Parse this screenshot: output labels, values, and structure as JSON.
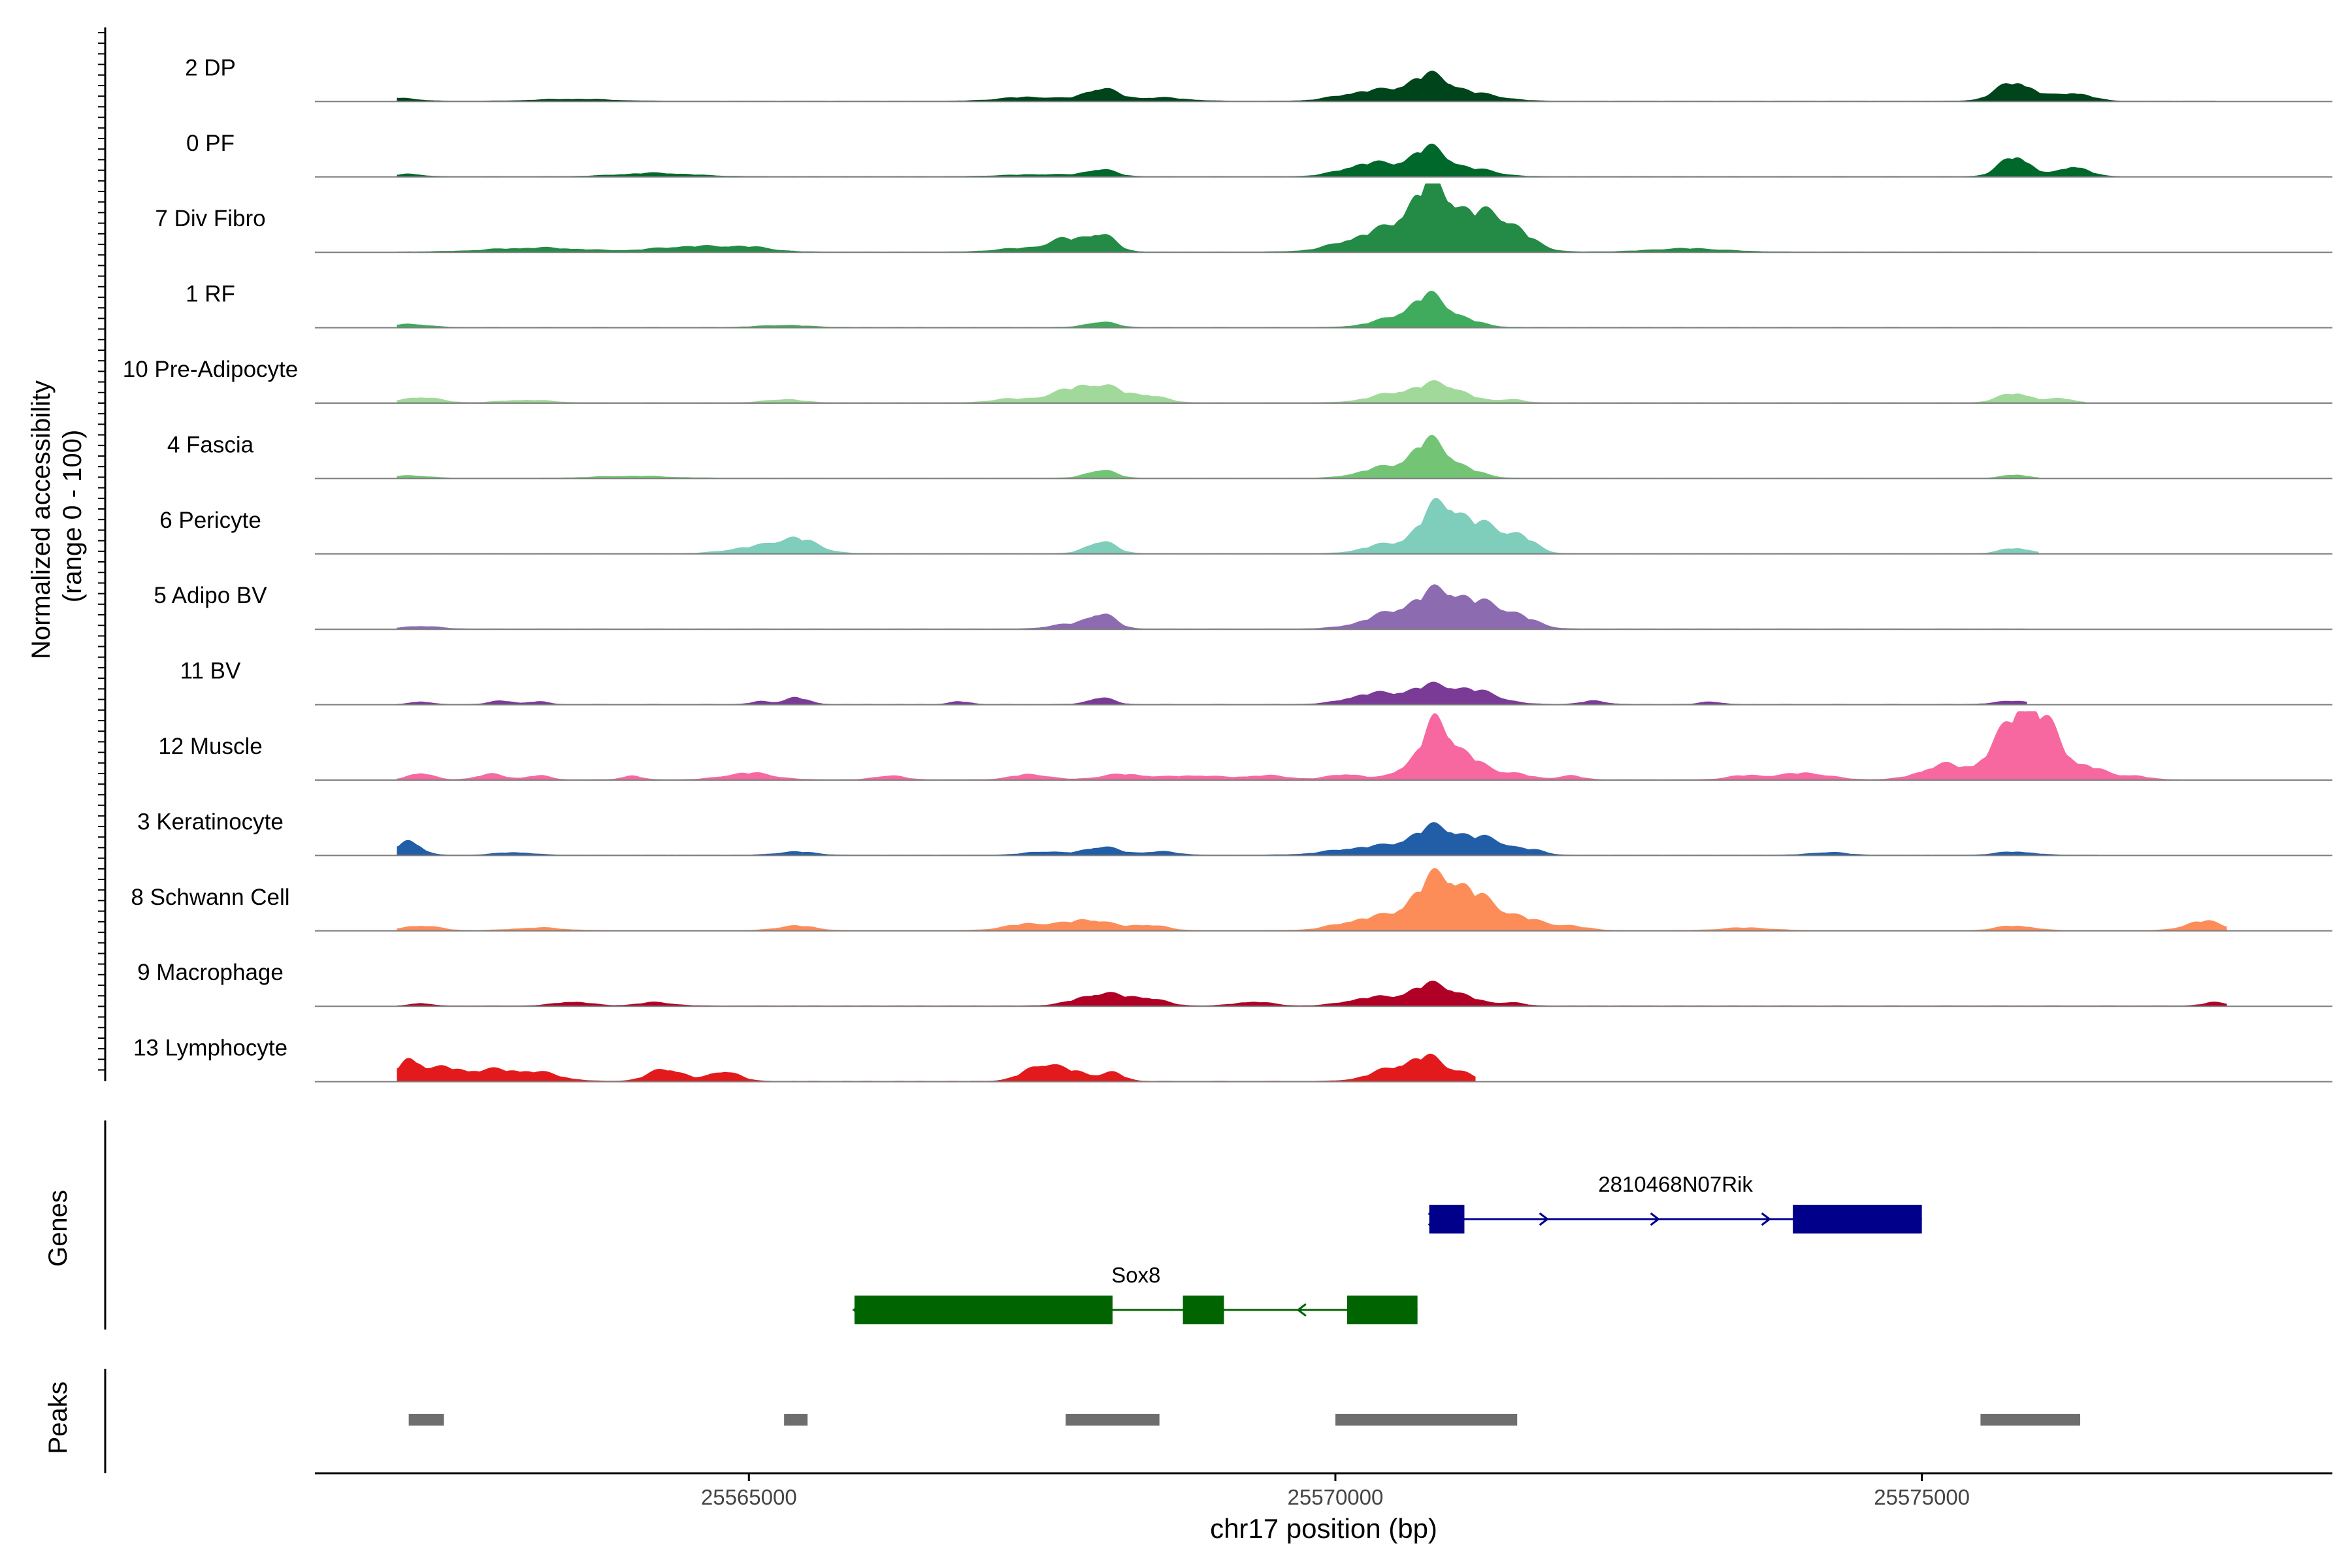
{
  "chart_data": {
    "type": "area",
    "title": "",
    "ylabel_line1": "Normalized accessibility",
    "ylabel_line2": "(range 0 - 100)",
    "xlabel": "chr17 position (bp)",
    "xlim": [
      25561300,
      25578500
    ],
    "ylim": [
      0,
      100
    ],
    "x_ticks": [
      25565000,
      25570000,
      25575000
    ],
    "x_tick_labels": [
      "25565000",
      "25570000",
      "25575000"
    ],
    "tracks": [
      {
        "name": "2 DP",
        "color": "#00441b",
        "peaks": [
          [
            25562000,
            0.05,
            150
          ],
          [
            25563500,
            0.03,
            300
          ],
          [
            25567400,
            0.06,
            250
          ],
          [
            25568000,
            0.18,
            140
          ],
          [
            25568500,
            0.05,
            220
          ],
          [
            25570300,
            0.15,
            250
          ],
          [
            25570800,
            0.35,
            180
          ],
          [
            25571200,
            0.1,
            220
          ],
          [
            25575800,
            0.28,
            160
          ],
          [
            25576300,
            0.12,
            140
          ]
        ],
        "extent": [
          25562000,
          25577500
        ]
      },
      {
        "name": "0 PF",
        "color": "#00682b",
        "peaks": [
          [
            25562100,
            0.04,
            100
          ],
          [
            25564200,
            0.05,
            300
          ],
          [
            25567500,
            0.03,
            300
          ],
          [
            25568000,
            0.1,
            120
          ],
          [
            25570300,
            0.2,
            220
          ],
          [
            25570800,
            0.4,
            160
          ],
          [
            25571200,
            0.1,
            180
          ],
          [
            25575800,
            0.3,
            130
          ],
          [
            25576300,
            0.15,
            120
          ]
        ],
        "extent": [
          25562000,
          25576700
        ]
      },
      {
        "name": "7 Div Fibro",
        "color": "#238b45",
        "peaks": [
          [
            25563200,
            0.06,
            400
          ],
          [
            25564500,
            0.08,
            300
          ],
          [
            25565000,
            0.06,
            200
          ],
          [
            25567300,
            0.05,
            200
          ],
          [
            25567700,
            0.18,
            150
          ],
          [
            25568000,
            0.25,
            120
          ],
          [
            25570400,
            0.3,
            300
          ],
          [
            25570800,
            0.75,
            170
          ],
          [
            25571200,
            0.5,
            250
          ],
          [
            25571500,
            0.2,
            180
          ],
          [
            25573000,
            0.05,
            300
          ]
        ],
        "extent": [
          25562000,
          25576000
        ]
      },
      {
        "name": "1 RF",
        "color": "#41ab5d",
        "peaks": [
          [
            25562100,
            0.05,
            150
          ],
          [
            25565300,
            0.03,
            200
          ],
          [
            25568000,
            0.08,
            120
          ],
          [
            25570500,
            0.12,
            200
          ],
          [
            25570800,
            0.42,
            150
          ],
          [
            25571100,
            0.1,
            150
          ]
        ],
        "extent": [
          25562000,
          25575900
        ]
      },
      {
        "name": "10 Pre-Adipocyte",
        "color": "#a1d99b",
        "peaks": [
          [
            25562200,
            0.08,
            160
          ],
          [
            25563100,
            0.04,
            200
          ],
          [
            25565300,
            0.05,
            150
          ],
          [
            25567200,
            0.05,
            150
          ],
          [
            25567700,
            0.14,
            200
          ],
          [
            25568000,
            0.22,
            180
          ],
          [
            25568400,
            0.1,
            150
          ],
          [
            25570500,
            0.12,
            220
          ],
          [
            25570900,
            0.26,
            200
          ],
          [
            25571500,
            0.05,
            100
          ],
          [
            25575800,
            0.14,
            140
          ],
          [
            25576200,
            0.06,
            100
          ]
        ],
        "extent": [
          25562000,
          25576400
        ]
      },
      {
        "name": "4 Fascia",
        "color": "#74c476",
        "peaks": [
          [
            25562100,
            0.04,
            150
          ],
          [
            25564000,
            0.03,
            300
          ],
          [
            25568000,
            0.12,
            120
          ],
          [
            25570400,
            0.15,
            200
          ],
          [
            25570800,
            0.52,
            150
          ],
          [
            25571100,
            0.12,
            150
          ],
          [
            25575800,
            0.05,
            100
          ]
        ],
        "extent": [
          25562000,
          25576000
        ]
      },
      {
        "name": "6 Pericyte",
        "color": "#7fcdbb",
        "peaks": [
          [
            25565000,
            0.08,
            200
          ],
          [
            25565400,
            0.22,
            180
          ],
          [
            25568000,
            0.18,
            120
          ],
          [
            25570400,
            0.12,
            180
          ],
          [
            25570900,
            0.72,
            180
          ],
          [
            25571300,
            0.35,
            180
          ],
          [
            25571600,
            0.18,
            120
          ],
          [
            25575800,
            0.08,
            120
          ]
        ],
        "extent": [
          25562000,
          25576000
        ]
      },
      {
        "name": "5 Adipo BV",
        "color": "#8c6bb1",
        "peaks": [
          [
            25562200,
            0.04,
            150
          ],
          [
            25567700,
            0.06,
            150
          ],
          [
            25568000,
            0.22,
            120
          ],
          [
            25570500,
            0.22,
            250
          ],
          [
            25570900,
            0.48,
            200
          ],
          [
            25571300,
            0.3,
            200
          ],
          [
            25571600,
            0.1,
            150
          ]
        ],
        "extent": [
          25562000,
          25575900
        ]
      },
      {
        "name": "11 BV",
        "color": "#7a3b97",
        "peaks": [
          [
            25562200,
            0.04,
            80
          ],
          [
            25562900,
            0.05,
            100
          ],
          [
            25563200,
            0.04,
            80
          ],
          [
            25565100,
            0.04,
            80
          ],
          [
            25565400,
            0.1,
            100
          ],
          [
            25566800,
            0.04,
            80
          ],
          [
            25568000,
            0.1,
            100
          ],
          [
            25570300,
            0.15,
            200
          ],
          [
            25570800,
            0.25,
            200
          ],
          [
            25571200,
            0.18,
            200
          ],
          [
            25572200,
            0.05,
            100
          ],
          [
            25573200,
            0.04,
            80
          ],
          [
            25575800,
            0.05,
            150
          ]
        ],
        "extent": [
          25562000,
          25575900
        ]
      },
      {
        "name": "12 Muscle",
        "color": "#f768a1",
        "peaks": [
          [
            25562200,
            0.1,
            100
          ],
          [
            25562800,
            0.08,
            120
          ],
          [
            25563200,
            0.06,
            100
          ],
          [
            25564000,
            0.06,
            80
          ],
          [
            25565000,
            0.1,
            200
          ],
          [
            25566200,
            0.06,
            120
          ],
          [
            25567400,
            0.08,
            150
          ],
          [
            25568200,
            0.08,
            200
          ],
          [
            25568800,
            0.06,
            200
          ],
          [
            25569400,
            0.06,
            200
          ],
          [
            25570100,
            0.08,
            150
          ],
          [
            25570600,
            0.15,
            120
          ],
          [
            25570850,
            0.75,
            120
          ],
          [
            25571100,
            0.35,
            150
          ],
          [
            25571500,
            0.1,
            150
          ],
          [
            25572000,
            0.06,
            100
          ],
          [
            25573500,
            0.06,
            150
          ],
          [
            25574000,
            0.1,
            200
          ],
          [
            25575200,
            0.22,
            200
          ],
          [
            25575700,
            0.55,
            150
          ],
          [
            25575900,
            0.8,
            120
          ],
          [
            25576100,
            0.55,
            120
          ],
          [
            25576400,
            0.2,
            150
          ],
          [
            25576800,
            0.06,
            120
          ]
        ],
        "extent": [
          25562000,
          25577200
        ]
      },
      {
        "name": "3 Keratinocyte",
        "color": "#225ea8",
        "peaks": [
          [
            25562100,
            0.22,
            100
          ],
          [
            25563000,
            0.04,
            150
          ],
          [
            25565400,
            0.05,
            150
          ],
          [
            25567500,
            0.05,
            150
          ],
          [
            25568000,
            0.12,
            150
          ],
          [
            25568500,
            0.05,
            150
          ],
          [
            25570300,
            0.12,
            300
          ],
          [
            25570850,
            0.38,
            200
          ],
          [
            25571300,
            0.22,
            200
          ],
          [
            25571700,
            0.05,
            100
          ],
          [
            25574200,
            0.04,
            150
          ],
          [
            25575800,
            0.05,
            150
          ]
        ],
        "extent": [
          25562000,
          25576500
        ]
      },
      {
        "name": "8 Schwann Cell",
        "color": "#fc8d59",
        "peaks": [
          [
            25562200,
            0.07,
            150
          ],
          [
            25563200,
            0.04,
            200
          ],
          [
            25565400,
            0.07,
            150
          ],
          [
            25567400,
            0.1,
            200
          ],
          [
            25567900,
            0.16,
            180
          ],
          [
            25568400,
            0.08,
            150
          ],
          [
            25570300,
            0.18,
            250
          ],
          [
            25570850,
            0.7,
            200
          ],
          [
            25571200,
            0.4,
            200
          ],
          [
            25571600,
            0.15,
            180
          ],
          [
            25572000,
            0.06,
            150
          ],
          [
            25573500,
            0.04,
            200
          ],
          [
            25575800,
            0.07,
            150
          ],
          [
            25577400,
            0.14,
            150
          ]
        ],
        "extent": [
          25562000,
          25577600
        ]
      },
      {
        "name": "9 Macrophage",
        "color": "#b10026",
        "peaks": [
          [
            25562200,
            0.04,
            80
          ],
          [
            25563500,
            0.06,
            150
          ],
          [
            25564200,
            0.05,
            150
          ],
          [
            25568000,
            0.18,
            200
          ],
          [
            25568400,
            0.1,
            150
          ],
          [
            25569300,
            0.06,
            150
          ],
          [
            25570300,
            0.12,
            200
          ],
          [
            25570800,
            0.3,
            180
          ],
          [
            25571100,
            0.1,
            150
          ],
          [
            25571500,
            0.05,
            100
          ],
          [
            25577500,
            0.05,
            100
          ]
        ],
        "extent": [
          25562000,
          25577600
        ]
      },
      {
        "name": "13 Lymphocyte",
        "color": "#e31a1c",
        "peaks": [
          [
            25562100,
            0.32,
            100
          ],
          [
            25562400,
            0.18,
            150
          ],
          [
            25562800,
            0.15,
            200
          ],
          [
            25563200,
            0.12,
            200
          ],
          [
            25564300,
            0.18,
            150
          ],
          [
            25564800,
            0.15,
            120
          ],
          [
            25567500,
            0.25,
            150
          ],
          [
            25567800,
            0.12,
            120
          ],
          [
            25568100,
            0.12,
            100
          ],
          [
            25570500,
            0.18,
            200
          ],
          [
            25570800,
            0.3,
            150
          ],
          [
            25571100,
            0.1,
            100
          ]
        ],
        "extent": [
          25562000,
          25571200
        ]
      }
    ],
    "genes": {
      "axis_label": "Genes",
      "items": [
        {
          "name": "2810468N07Rik",
          "strand": "+",
          "color": "#00008b",
          "start": 25570800,
          "end": 25575000,
          "exons": [
            [
              25570800,
              25571100
            ],
            [
              25573900,
              25575000
            ]
          ]
        },
        {
          "name": "Sox8",
          "strand": "-",
          "color": "#006400",
          "start": 25565900,
          "end": 25570700,
          "exons": [
            [
              25565900,
              25568100
            ],
            [
              25568700,
              25569050
            ],
            [
              25570100,
              25570700
            ]
          ]
        }
      ]
    },
    "peaks_track": {
      "axis_label": "Peaks",
      "color": "#6e6e6e",
      "regions": [
        [
          25562100,
          25562400
        ],
        [
          25565300,
          25565500
        ],
        [
          25567700,
          25568500
        ],
        [
          25570000,
          25571550
        ],
        [
          25575500,
          25576350
        ]
      ]
    }
  }
}
